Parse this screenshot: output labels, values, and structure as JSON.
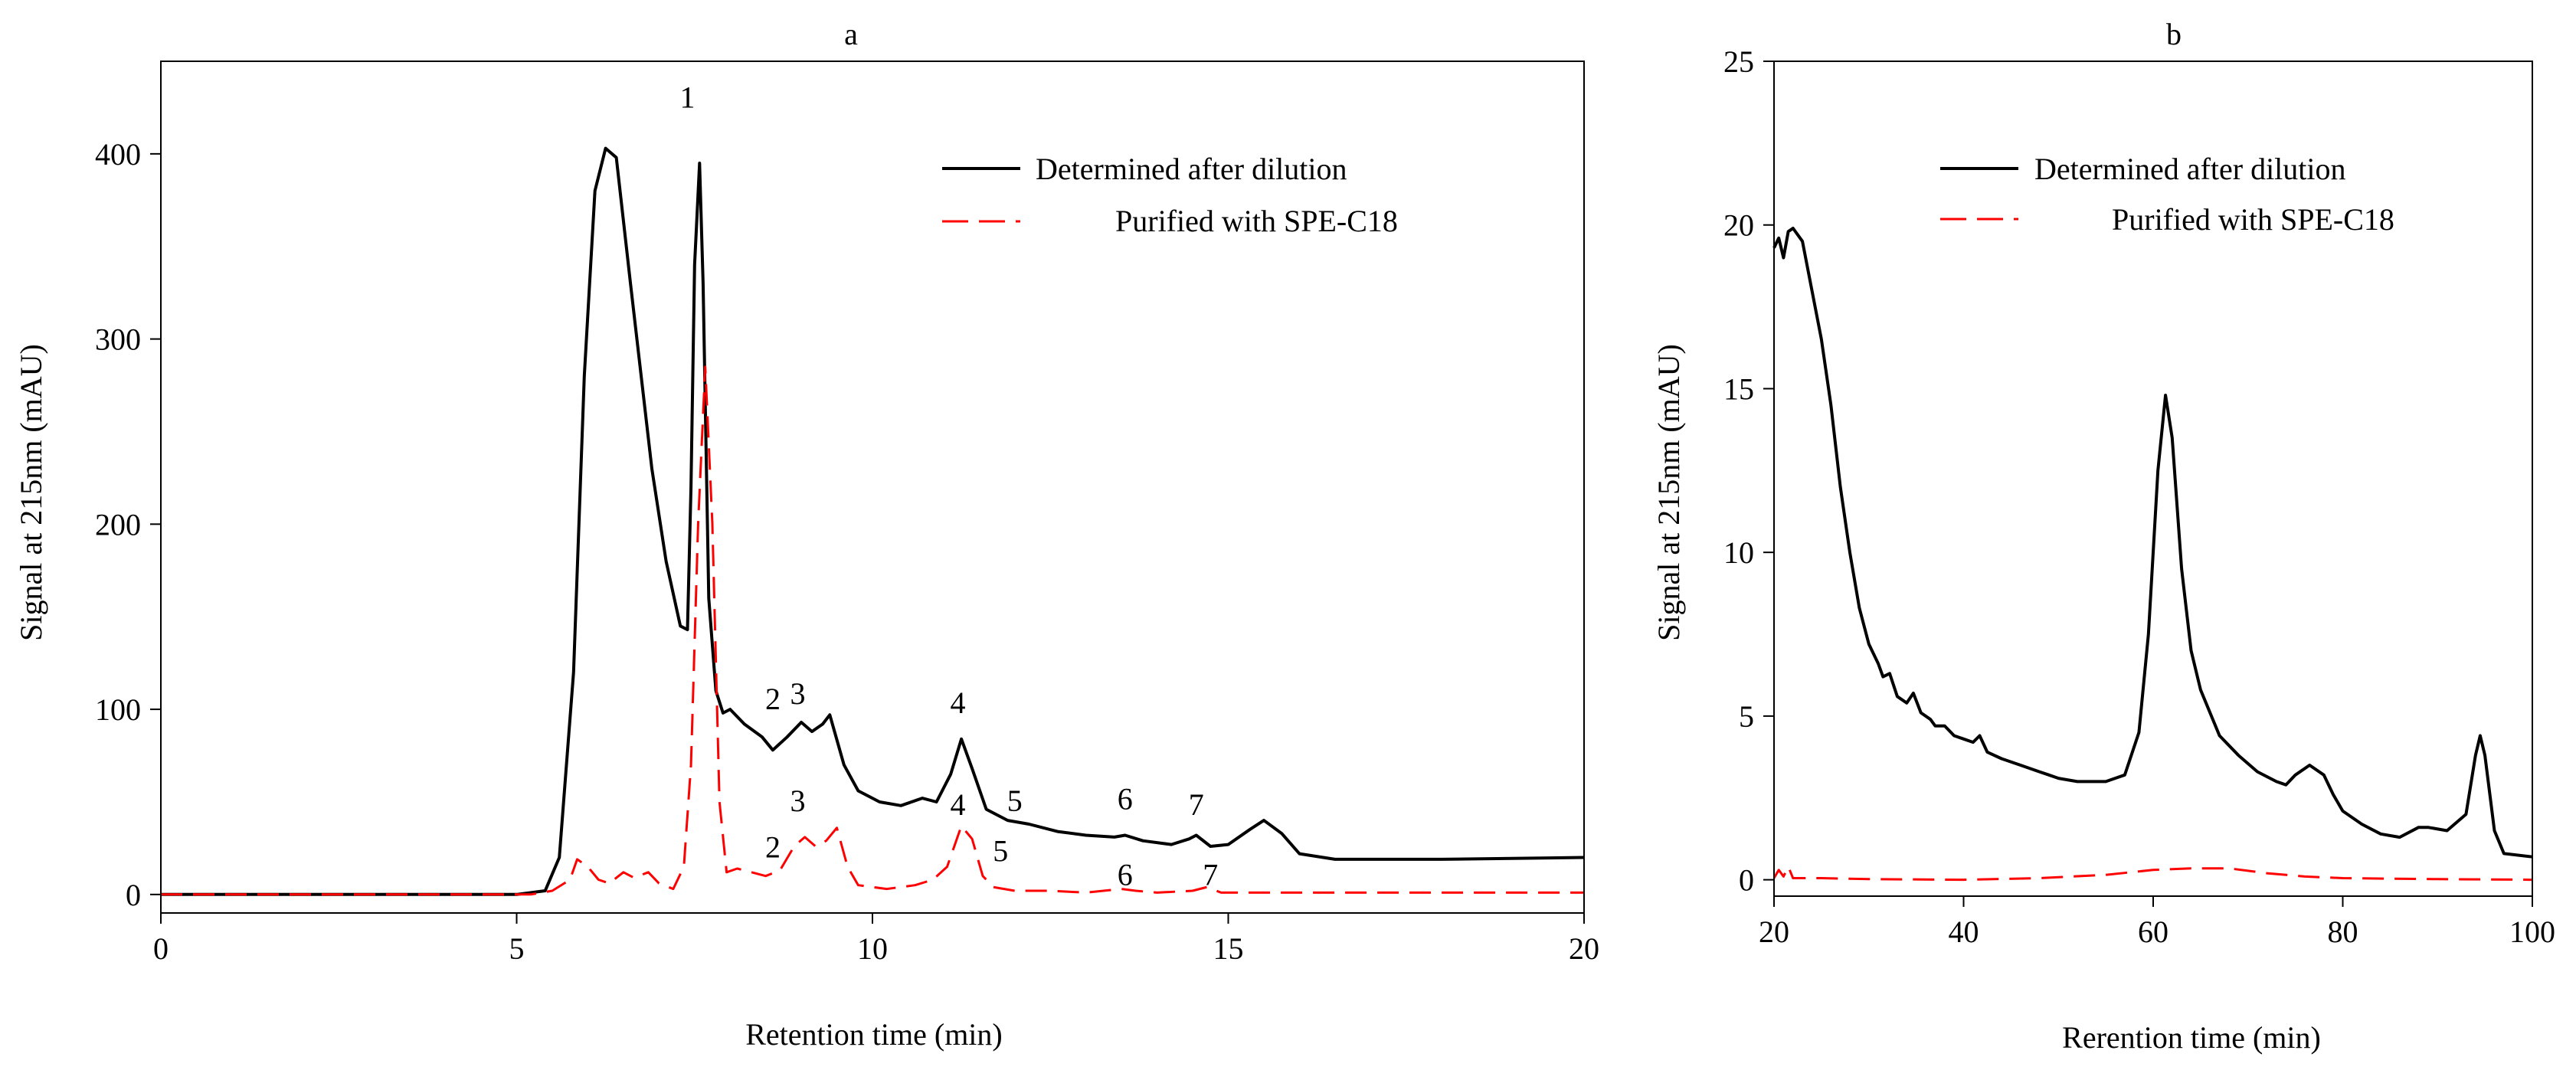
{
  "chart_data": [
    {
      "id": "a",
      "type": "line",
      "title": "a",
      "xlabel": "Retention time (min)",
      "ylabel": "Signal at 215nm (mAU)",
      "xlim": [
        0,
        20
      ],
      "ylim": [
        -10,
        450
      ],
      "xticks": [
        0,
        5,
        10,
        15,
        20
      ],
      "yticks": [
        0,
        100,
        200,
        300,
        400
      ],
      "grid": false,
      "legend_position": "top-right",
      "series": [
        {
          "name": "Determined after dilution",
          "color": "#000000",
          "style": "solid",
          "points": [
            [
              0,
              0
            ],
            [
              5.0,
              0
            ],
            [
              5.4,
              2
            ],
            [
              5.6,
              20
            ],
            [
              5.8,
              120
            ],
            [
              5.95,
              280
            ],
            [
              6.1,
              380
            ],
            [
              6.25,
              403
            ],
            [
              6.4,
              398
            ],
            [
              6.6,
              330
            ],
            [
              6.9,
              230
            ],
            [
              7.1,
              180
            ],
            [
              7.3,
              145
            ],
            [
              7.4,
              143
            ],
            [
              7.45,
              220
            ],
            [
              7.5,
              340
            ],
            [
              7.57,
              395
            ],
            [
              7.62,
              330
            ],
            [
              7.7,
              160
            ],
            [
              7.8,
              110
            ],
            [
              7.9,
              98
            ],
            [
              8.0,
              100
            ],
            [
              8.2,
              92
            ],
            [
              8.45,
              85
            ],
            [
              8.6,
              78
            ],
            [
              8.8,
              85
            ],
            [
              9.0,
              93
            ],
            [
              9.15,
              88
            ],
            [
              9.3,
              92
            ],
            [
              9.4,
              97
            ],
            [
              9.6,
              70
            ],
            [
              9.8,
              56
            ],
            [
              10.1,
              50
            ],
            [
              10.4,
              48
            ],
            [
              10.7,
              52
            ],
            [
              10.9,
              50
            ],
            [
              11.1,
              65
            ],
            [
              11.25,
              84
            ],
            [
              11.4,
              68
            ],
            [
              11.6,
              46
            ],
            [
              11.9,
              40
            ],
            [
              12.2,
              38
            ],
            [
              12.6,
              34
            ],
            [
              13.0,
              32
            ],
            [
              13.4,
              31
            ],
            [
              13.55,
              32
            ],
            [
              13.8,
              29
            ],
            [
              14.2,
              27
            ],
            [
              14.45,
              30
            ],
            [
              14.55,
              32
            ],
            [
              14.75,
              26
            ],
            [
              15.0,
              27
            ],
            [
              15.3,
              35
            ],
            [
              15.5,
              40
            ],
            [
              15.75,
              33
            ],
            [
              16.0,
              22
            ],
            [
              16.5,
              19
            ],
            [
              18,
              19
            ],
            [
              20,
              20
            ]
          ]
        },
        {
          "name": "Purified with SPE-C18",
          "color": "#ff0000",
          "style": "dashed",
          "points": [
            [
              0,
              0
            ],
            [
              5.2,
              0
            ],
            [
              5.5,
              2
            ],
            [
              5.75,
              8
            ],
            [
              5.85,
              19
            ],
            [
              6.0,
              15
            ],
            [
              6.15,
              8
            ],
            [
              6.3,
              6
            ],
            [
              6.5,
              12
            ],
            [
              6.65,
              9
            ],
            [
              6.85,
              12
            ],
            [
              7.0,
              6
            ],
            [
              7.2,
              3
            ],
            [
              7.35,
              15
            ],
            [
              7.45,
              70
            ],
            [
              7.55,
              200
            ],
            [
              7.65,
              285
            ],
            [
              7.75,
              200
            ],
            [
              7.85,
              50
            ],
            [
              7.95,
              12
            ],
            [
              8.1,
              14
            ],
            [
              8.3,
              12
            ],
            [
              8.5,
              10
            ],
            [
              8.7,
              13
            ],
            [
              8.9,
              26
            ],
            [
              9.05,
              31
            ],
            [
              9.2,
              26
            ],
            [
              9.35,
              29
            ],
            [
              9.5,
              36
            ],
            [
              9.65,
              15
            ],
            [
              9.8,
              5
            ],
            [
              10.2,
              3
            ],
            [
              10.6,
              5
            ],
            [
              10.85,
              8
            ],
            [
              11.05,
              15
            ],
            [
              11.25,
              37
            ],
            [
              11.4,
              30
            ],
            [
              11.55,
              10
            ],
            [
              11.7,
              4
            ],
            [
              12.0,
              2
            ],
            [
              12.5,
              2
            ],
            [
              13.0,
              1
            ],
            [
              13.5,
              3
            ],
            [
              13.7,
              2
            ],
            [
              14.0,
              1
            ],
            [
              14.5,
              2
            ],
            [
              14.7,
              4
            ],
            [
              14.9,
              1
            ],
            [
              15.5,
              1
            ],
            [
              20,
              1
            ]
          ]
        }
      ],
      "annotations": [
        {
          "text": "1",
          "x": 7.4,
          "y": 425
        },
        {
          "text": "2",
          "x": 8.6,
          "y": 100
        },
        {
          "text": "3",
          "x": 8.95,
          "y": 103
        },
        {
          "text": "4",
          "x": 11.2,
          "y": 98
        },
        {
          "text": "5",
          "x": 12.0,
          "y": 45
        },
        {
          "text": "6",
          "x": 13.55,
          "y": 46
        },
        {
          "text": "7",
          "x": 14.55,
          "y": 43
        },
        {
          "text": "2",
          "x": 8.6,
          "y": 20
        },
        {
          "text": "3",
          "x": 8.95,
          "y": 45
        },
        {
          "text": "4",
          "x": 11.2,
          "y": 43
        },
        {
          "text": "5",
          "x": 11.8,
          "y": 18
        },
        {
          "text": "6",
          "x": 13.55,
          "y": 5
        },
        {
          "text": "7",
          "x": 14.75,
          "y": 5
        }
      ]
    },
    {
      "id": "b",
      "type": "line",
      "title": "b",
      "xlabel": "Rerention time (min)",
      "ylabel": "Signal at 215nm (mAU)",
      "xlim": [
        20,
        100
      ],
      "ylim": [
        -0.5,
        25
      ],
      "xticks": [
        20,
        40,
        60,
        80,
        100
      ],
      "yticks": [
        0,
        5,
        10,
        15,
        20,
        25
      ],
      "grid": false,
      "legend_position": "top-right",
      "series": [
        {
          "name": "Determined after dilution",
          "color": "#000000",
          "style": "solid",
          "points": [
            [
              20,
              19.3
            ],
            [
              20.5,
              19.6
            ],
            [
              21,
              19.0
            ],
            [
              21.5,
              19.8
            ],
            [
              22,
              19.9
            ],
            [
              23,
              19.5
            ],
            [
              24,
              18.0
            ],
            [
              25,
              16.5
            ],
            [
              26,
              14.5
            ],
            [
              27,
              12.0
            ],
            [
              28,
              10.0
            ],
            [
              29,
              8.3
            ],
            [
              30,
              7.2
            ],
            [
              31,
              6.6
            ],
            [
              31.5,
              6.2
            ],
            [
              32.2,
              6.3
            ],
            [
              33,
              5.6
            ],
            [
              34,
              5.4
            ],
            [
              34.7,
              5.7
            ],
            [
              35.5,
              5.1
            ],
            [
              36.5,
              4.9
            ],
            [
              37,
              4.7
            ],
            [
              38,
              4.7
            ],
            [
              39,
              4.4
            ],
            [
              40,
              4.3
            ],
            [
              41,
              4.2
            ],
            [
              41.7,
              4.4
            ],
            [
              42.5,
              3.9
            ],
            [
              44,
              3.7
            ],
            [
              46,
              3.5
            ],
            [
              48,
              3.3
            ],
            [
              49,
              3.2
            ],
            [
              50,
              3.1
            ],
            [
              52,
              3.0
            ],
            [
              55,
              3.0
            ],
            [
              57,
              3.2
            ],
            [
              58.5,
              4.5
            ],
            [
              59.5,
              7.5
            ],
            [
              60.5,
              12.5
            ],
            [
              61.3,
              14.8
            ],
            [
              62,
              13.5
            ],
            [
              63,
              9.5
            ],
            [
              64,
              7.0
            ],
            [
              65,
              5.8
            ],
            [
              67,
              4.4
            ],
            [
              69,
              3.8
            ],
            [
              71,
              3.3
            ],
            [
              73,
              3.0
            ],
            [
              74,
              2.9
            ],
            [
              75,
              3.2
            ],
            [
              76.5,
              3.5
            ],
            [
              78,
              3.2
            ],
            [
              79,
              2.6
            ],
            [
              80,
              2.1
            ],
            [
              82,
              1.7
            ],
            [
              84,
              1.4
            ],
            [
              86,
              1.3
            ],
            [
              88,
              1.6
            ],
            [
              89,
              1.6
            ],
            [
              91,
              1.5
            ],
            [
              93,
              2.0
            ],
            [
              94,
              3.8
            ],
            [
              94.5,
              4.4
            ],
            [
              95,
              3.8
            ],
            [
              96,
              1.5
            ],
            [
              97,
              0.8
            ],
            [
              100,
              0.7
            ]
          ]
        },
        {
          "name": "Purified with SPE-C18",
          "color": "#ff0000",
          "style": "dashed",
          "points": [
            [
              20,
              0.05
            ],
            [
              20.5,
              0.3
            ],
            [
              21,
              0.1
            ],
            [
              21.5,
              0.4
            ],
            [
              22,
              0.05
            ],
            [
              25,
              0.05
            ],
            [
              30,
              0.02
            ],
            [
              40,
              0
            ],
            [
              48,
              0.05
            ],
            [
              55,
              0.15
            ],
            [
              60,
              0.3
            ],
            [
              64,
              0.35
            ],
            [
              68,
              0.35
            ],
            [
              72,
              0.2
            ],
            [
              76,
              0.1
            ],
            [
              80,
              0.05
            ],
            [
              90,
              0.02
            ],
            [
              100,
              0
            ]
          ]
        }
      ],
      "annotations": []
    }
  ]
}
